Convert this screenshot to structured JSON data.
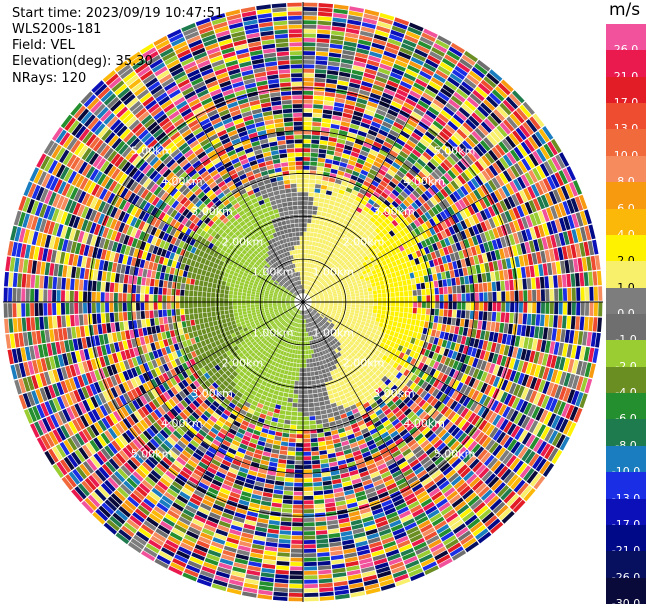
{
  "header": {
    "start_time": "Start time: 2023/09/19 10:47:51",
    "instrument": "WLS200s-181",
    "field": "Field: VEL",
    "elevation": "Elevation(deg): 35.30",
    "nrays": "NRays: 120"
  },
  "colorbar": {
    "unit": "m/s",
    "levels": [
      {
        "label": "26.0",
        "color": "#f2519b"
      },
      {
        "label": "21.0",
        "color": "#ea1a4e"
      },
      {
        "label": "17.0",
        "color": "#e21d26"
      },
      {
        "label": "13.0",
        "color": "#ee4d2f"
      },
      {
        "label": "10.0",
        "color": "#f06a3c"
      },
      {
        "label": "8.0",
        "color": "#f68b5e"
      },
      {
        "label": "6.0",
        "color": "#f79a10"
      },
      {
        "label": "4.0",
        "color": "#fbb809"
      },
      {
        "label": "2.0",
        "color": "#fff200"
      },
      {
        "label": "1.0",
        "color": "#f8ef6a"
      },
      {
        "label": "0.0",
        "color": "#7d7d7d"
      },
      {
        "label": "-1.0",
        "color": "#6f6f6f"
      },
      {
        "label": "-2.0",
        "color": "#9acd32"
      },
      {
        "label": "-4.0",
        "color": "#6b8e23"
      },
      {
        "label": "-6.0",
        "color": "#248f2e"
      },
      {
        "label": "-8.0",
        "color": "#1e7b4d"
      },
      {
        "label": "-10.0",
        "color": "#1a7dc0"
      },
      {
        "label": "-13.0",
        "color": "#1a2ee6"
      },
      {
        "label": "-17.0",
        "color": "#0b10b8"
      },
      {
        "label": "-21.0",
        "color": "#000a88"
      },
      {
        "label": "-26.0",
        "color": "#06105e"
      },
      {
        "label": "-30.0",
        "color": "#0a0a3a"
      }
    ]
  },
  "chart_data": {
    "type": "heatmap",
    "subtype": "polar PPI",
    "field": "VEL",
    "unit": "m/s",
    "nrays": 120,
    "elevation_deg": 35.3,
    "range_rings_km": [
      1.0,
      2.0,
      3.0,
      4.0,
      5.0
    ],
    "ring_labels": [
      "1.00km",
      "2.00km",
      "3.00km",
      "4.00km",
      "5.00km"
    ],
    "colormap_levels": [
      26.0,
      21.0,
      17.0,
      13.0,
      10.0,
      8.0,
      6.0,
      4.0,
      2.0,
      1.0,
      0.0,
      -1.0,
      -2.0,
      -4.0,
      -6.0,
      -8.0,
      -10.0,
      -13.0,
      -17.0,
      -21.0,
      -26.0,
      -30.0
    ],
    "max_range_km": 7.0,
    "valid_data_range_km": 3.0
  }
}
